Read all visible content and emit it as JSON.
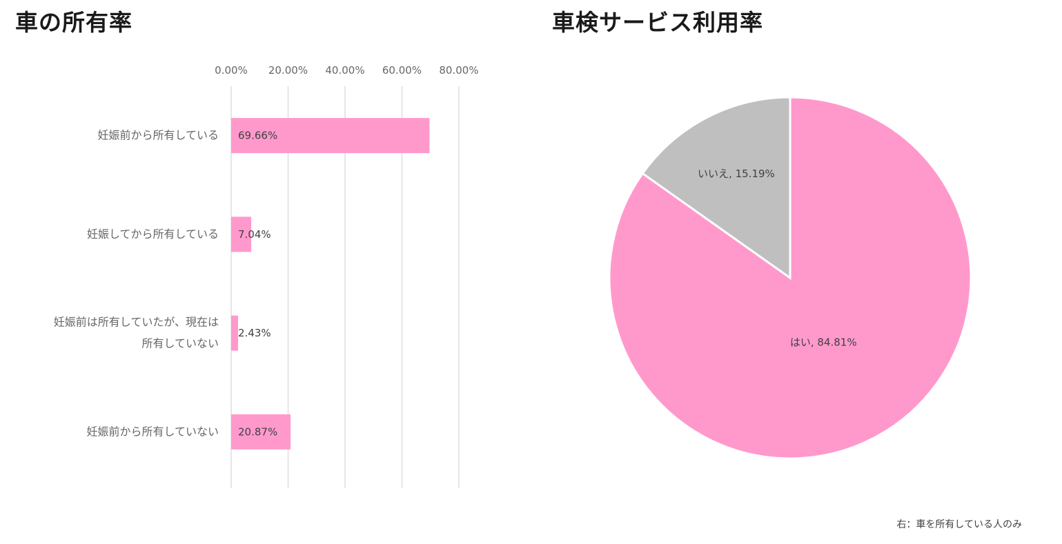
{
  "titles": {
    "bar": "車の所有率",
    "pie": "車検サービス利用率"
  },
  "note": "右：車を所有している人のみ",
  "colors": {
    "bar": "#FF99CC",
    "pie_yes": "#FF99CC",
    "pie_no": "#BFBFBF",
    "grid": "#D9D9D9"
  },
  "chart_data": [
    {
      "type": "bar",
      "orientation": "horizontal",
      "title": "車の所有率",
      "categories": [
        [
          "妊娠前から所有している"
        ],
        [
          "妊娠してから所有している"
        ],
        [
          "妊娠前は所有していたが、現在は",
          "所有していない"
        ],
        [
          "妊娠前から所有していない"
        ]
      ],
      "values": [
        69.66,
        7.04,
        2.43,
        20.87
      ],
      "value_labels": [
        "69.66%",
        "7.04%",
        "2.43%",
        "20.87%"
      ],
      "axis_ticks": [
        "0.00%",
        "20.00%",
        "40.00%",
        "60.00%",
        "80.00%"
      ],
      "xlim": [
        0,
        80
      ],
      "axis_position": "top",
      "grid": true,
      "legend": false
    },
    {
      "type": "pie",
      "title": "車検サービス利用率",
      "slices": [
        {
          "label": "はい",
          "value": 84.81,
          "text": "はい, 84.81%"
        },
        {
          "label": "いいえ",
          "value": 15.19,
          "text": "いいえ, 15.19%"
        }
      ],
      "legend": false
    }
  ]
}
